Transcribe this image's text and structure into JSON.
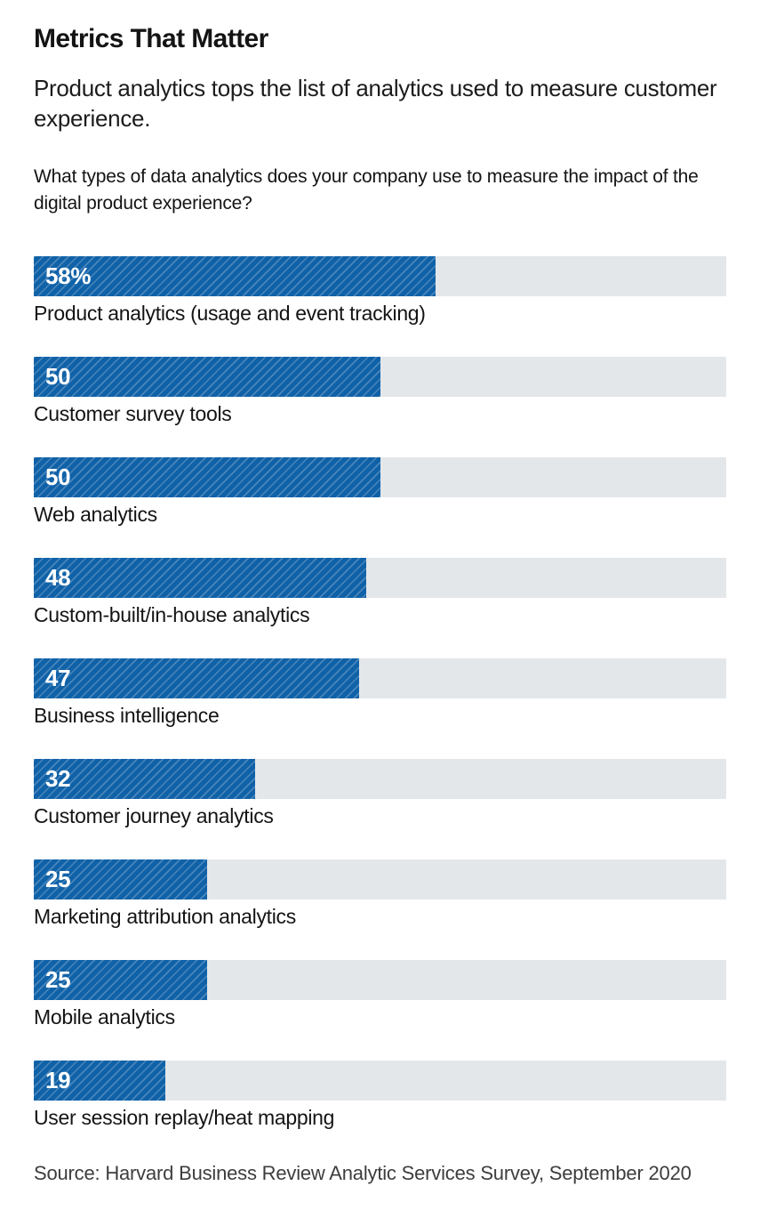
{
  "header": {
    "title": "Metrics That Matter",
    "subtitle": "Product analytics tops the list of analytics used to measure customer experience.",
    "question": "What types of data analytics does your company use to measure the impact of the digital product experience?"
  },
  "chart_data": {
    "type": "bar",
    "orientation": "horizontal",
    "title": "Metrics That Matter",
    "subtitle": "Product analytics tops the list of analytics used to measure customer experience.",
    "question": "What types of data analytics does your company use to measure the impact of the digital product experience?",
    "unit": "percent",
    "xlim": [
      0,
      100
    ],
    "grid": false,
    "legend": false,
    "categories": [
      "Product analytics (usage and event tracking)",
      "Customer survey tools",
      "Web analytics",
      "Custom-built/in-house analytics",
      "Business intelligence",
      "Customer journey analytics",
      "Marketing attribution analytics",
      "Mobile analytics",
      "User session replay/heat mapping"
    ],
    "values": [
      58,
      50,
      50,
      48,
      47,
      32,
      25,
      25,
      19
    ],
    "rows": [
      {
        "label": "Product analytics (usage and event tracking)",
        "value": 58,
        "display_value": "58%"
      },
      {
        "label": "Customer survey tools",
        "value": 50,
        "display_value": "50"
      },
      {
        "label": "Web analytics",
        "value": 50,
        "display_value": "50"
      },
      {
        "label": "Custom-built/in-house analytics",
        "value": 48,
        "display_value": "48"
      },
      {
        "label": "Business intelligence",
        "value": 47,
        "display_value": "47"
      },
      {
        "label": "Customer journey analytics",
        "value": 32,
        "display_value": "32"
      },
      {
        "label": "Marketing attribution analytics",
        "value": 25,
        "display_value": "25"
      },
      {
        "label": "Mobile analytics",
        "value": 25,
        "display_value": "25"
      },
      {
        "label": "User session replay/heat mapping",
        "value": 19,
        "display_value": "19"
      }
    ],
    "colors": {
      "bar": "#1062a8",
      "bar_stripe": "#4a86bb",
      "track": "#e4e7ea",
      "value_text": "#ffffff",
      "label_text": "#141414"
    }
  },
  "footer": {
    "source": "Source: Harvard Business Review Analytic Services Survey, September 2020"
  }
}
